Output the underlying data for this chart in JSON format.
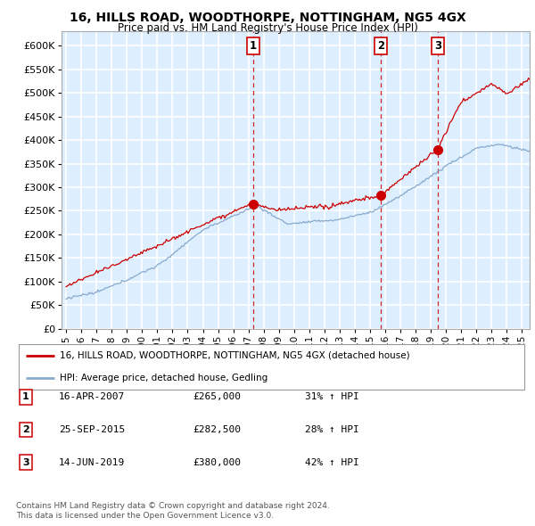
{
  "title1": "16, HILLS ROAD, WOODTHORPE, NOTTINGHAM, NG5 4GX",
  "title2": "Price paid vs. HM Land Registry's House Price Index (HPI)",
  "ylabel_ticks": [
    "£0",
    "£50K",
    "£100K",
    "£150K",
    "£200K",
    "£250K",
    "£300K",
    "£350K",
    "£400K",
    "£450K",
    "£500K",
    "£550K",
    "£600K"
  ],
  "ytick_vals": [
    0,
    50000,
    100000,
    150000,
    200000,
    250000,
    300000,
    350000,
    400000,
    450000,
    500000,
    550000,
    600000
  ],
  "ylim": [
    0,
    630000
  ],
  "xlim_start": 1994.7,
  "xlim_end": 2025.5,
  "sale1_date": 2007.29,
  "sale1_price": 265000,
  "sale2_date": 2015.73,
  "sale2_price": 282500,
  "sale3_date": 2019.45,
  "sale3_price": 380000,
  "line_color_red": "#cc0000",
  "line_color_blue": "#88aacc",
  "background_color": "#ddeeff",
  "grid_color": "#ffffff",
  "legend1": "16, HILLS ROAD, WOODTHORPE, NOTTINGHAM, NG5 4GX (detached house)",
  "legend2": "HPI: Average price, detached house, Gedling",
  "table_entries": [
    {
      "num": "1",
      "date": "16-APR-2007",
      "price": "£265,000",
      "pct": "31% ↑ HPI"
    },
    {
      "num": "2",
      "date": "25-SEP-2015",
      "price": "£282,500",
      "pct": "28% ↑ HPI"
    },
    {
      "num": "3",
      "date": "14-JUN-2019",
      "price": "£380,000",
      "pct": "42% ↑ HPI"
    }
  ],
  "footnote1": "Contains HM Land Registry data © Crown copyright and database right 2024.",
  "footnote2": "This data is licensed under the Open Government Licence v3.0."
}
